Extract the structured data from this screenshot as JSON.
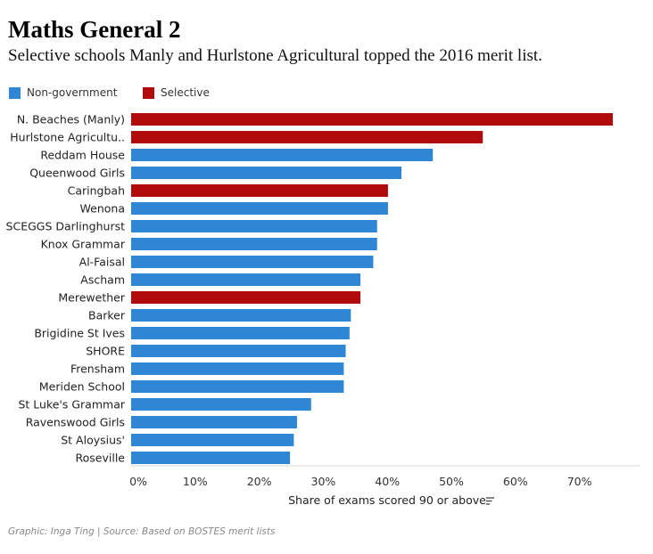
{
  "title": "Maths General 2",
  "subtitle": "Selective schools Manly and Hurlstone Agricultural topped the 2016 merit list.",
  "legend": [
    {
      "label": "Non-government",
      "color": "#2f86d4"
    },
    {
      "label": "Selective",
      "color": "#b10a0a"
    }
  ],
  "footer": "Graphic: Inga Ting | Source: Based on BOSTES merit lists",
  "chart_data": {
    "type": "bar",
    "orientation": "horizontal",
    "xlabel": "Share of exams scored 90 or above",
    "xlim": [
      0,
      78
    ],
    "xticks": [
      0,
      10,
      20,
      30,
      40,
      50,
      60,
      70
    ],
    "xtick_labels": [
      "0%",
      "10%",
      "20%",
      "30%",
      "40%",
      "50%",
      "60%",
      "70%"
    ],
    "legend_position": "top-left",
    "categories": [
      "N. Beaches (Manly)",
      "Hurlstone Agricultu..",
      "Reddam House",
      "Queenwood Girls",
      "Caringbah",
      "Wenona",
      "SCEGGS Darlinghurst",
      "Knox Grammar",
      "Al-Faisal",
      "Ascham",
      "Merewether",
      "Barker",
      "Brigidine St Ives",
      "SHORE",
      "Frensham",
      "Meriden School",
      "St Luke's Grammar",
      "Ravenswood Girls",
      "St Aloysius'",
      "Roseville"
    ],
    "values": [
      75.2,
      54.9,
      47.1,
      42.2,
      40.1,
      40.1,
      38.4,
      38.4,
      37.8,
      35.8,
      35.8,
      34.3,
      34.1,
      33.5,
      33.2,
      33.2,
      28.1,
      25.9,
      25.4,
      24.8
    ],
    "groups": [
      "Selective",
      "Selective",
      "Non-government",
      "Non-government",
      "Selective",
      "Non-government",
      "Non-government",
      "Non-government",
      "Non-government",
      "Non-government",
      "Selective",
      "Non-government",
      "Non-government",
      "Non-government",
      "Non-government",
      "Non-government",
      "Non-government",
      "Non-government",
      "Non-government",
      "Non-government"
    ]
  }
}
